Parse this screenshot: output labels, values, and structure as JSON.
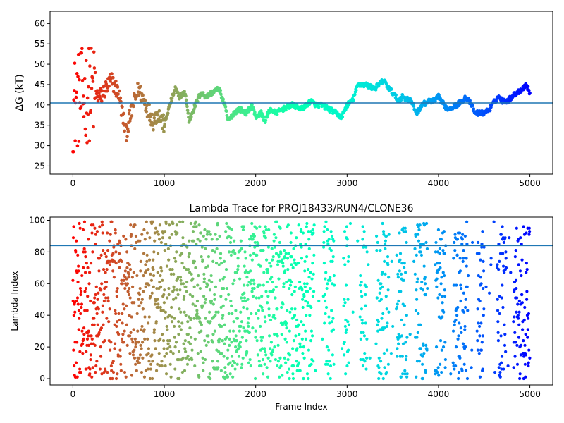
{
  "chart_data": [
    {
      "type": "scatter",
      "title": "",
      "xlabel": "",
      "ylabel": "ΔG (kT)",
      "xlim": [
        -250,
        5250
      ],
      "ylim": [
        23,
        63
      ],
      "xticks": [
        0,
        1000,
        2000,
        3000,
        4000,
        5000
      ],
      "yticks": [
        25,
        30,
        35,
        40,
        45,
        50,
        55,
        60
      ],
      "grid": false,
      "colormap": "rainbow (reversed): red at frame 0 to violet at frame 5000",
      "hline": {
        "y": 40.5,
        "color": "#1f77b4"
      },
      "approx_trend": {
        "x": [
          0,
          100,
          200,
          300,
          420,
          500,
          580,
          660,
          720,
          800,
          880,
          930,
          1000,
          1060,
          1120,
          1160,
          1230,
          1270,
          1320,
          1400,
          1460,
          1520,
          1600,
          1660,
          1700,
          1760,
          1820,
          1900,
          1960,
          2000,
          2060,
          2100,
          2160,
          2220,
          2300,
          2400,
          2500,
          2560,
          2600,
          2660,
          2720,
          2800,
          2880,
          2940,
          3000,
          3060,
          3120,
          3200,
          3300,
          3400,
          3460,
          3500,
          3560,
          3600,
          3700,
          3760,
          3820,
          3900,
          3960,
          4000,
          4060,
          4100,
          4200,
          4260,
          4300,
          4360,
          4400,
          4450,
          4500,
          4560,
          4620,
          4660,
          4700,
          4760,
          4800,
          4860,
          4920,
          4960,
          5000
        ],
        "y": [
          40,
          42,
          43,
          42,
          46,
          43,
          33,
          40,
          44,
          40,
          36,
          38,
          35,
          40,
          44,
          42,
          43,
          36,
          39,
          43,
          42,
          43,
          44,
          40,
          36,
          38,
          39,
          38,
          40,
          37,
          38,
          36,
          39,
          38,
          39,
          40,
          39,
          40,
          41,
          40,
          40,
          39,
          38,
          37,
          40,
          41,
          45,
          45,
          44,
          46,
          44,
          43,
          41,
          42,
          41,
          38,
          40,
          41,
          41,
          42,
          40,
          39,
          40,
          41,
          42,
          40,
          38,
          38,
          38,
          39,
          41,
          42,
          41,
          41,
          42,
          43,
          44,
          45,
          43
        ]
      }
    },
    {
      "type": "scatter",
      "title": "Lambda Trace for PROJ18433/RUN4/CLONE36",
      "xlabel": "Frame Index",
      "ylabel": "Lambda Index",
      "xlim": [
        -250,
        5250
      ],
      "ylim": [
        -4,
        102
      ],
      "xticks": [
        0,
        1000,
        2000,
        3000,
        4000,
        5000
      ],
      "yticks": [
        0,
        20,
        40,
        60,
        80,
        100
      ],
      "grid": false,
      "colormap": "rainbow (reversed): red at frame 0 to violet at frame 5000",
      "hline": {
        "y": 84,
        "color": "#1f77b4"
      },
      "points": {
        "count": 5000,
        "x_range": [
          0,
          5000
        ],
        "y_range": [
          0,
          99
        ],
        "distribution": "Lambda index values spread roughly uniformly over 0–99, with denser vertical clusters after frame 2700"
      }
    }
  ]
}
